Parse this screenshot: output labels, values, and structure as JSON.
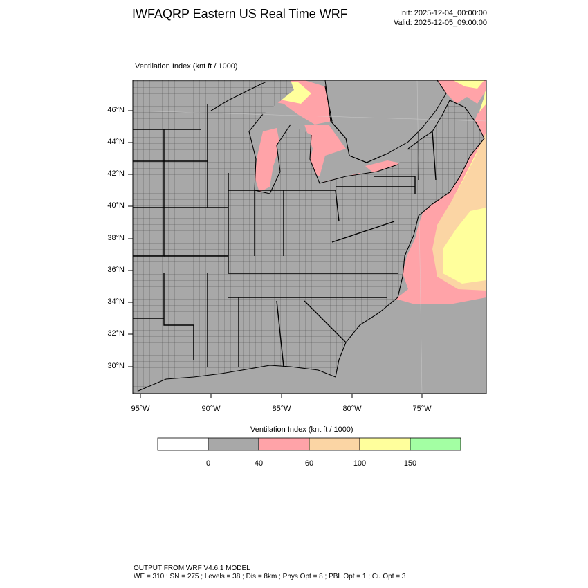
{
  "header": {
    "title": "IWFAQRP Eastern US Real Time WRF",
    "init": "Init: 2025-12-04_00:00:00",
    "valid": "Valid: 2025-12-05_09:00:00"
  },
  "plot": {
    "label": "Ventilation Index   (knt ft / 1000)",
    "lat_labels": [
      "46°N",
      "44°N",
      "42°N",
      "40°N",
      "38°N",
      "36°N",
      "34°N",
      "32°N",
      "30°N"
    ],
    "lon_labels": [
      "95°W",
      "90°W",
      "85°W",
      "80°W",
      "75°W"
    ],
    "colors": {
      "land": "#a8a8a8",
      "low_fill": "#ffa3a8",
      "mid_fill": "#fbd5a4",
      "high_fill": "#ffff9c",
      "top_fill": "#a3ffa3",
      "boundary": "#000000"
    }
  },
  "colorbar": {
    "title": "Ventilation Index  (knt ft / 1000)",
    "bins": [
      {
        "color": "#ffffff"
      },
      {
        "color": "#a8a8a8"
      },
      {
        "color": "#ffa3a8"
      },
      {
        "color": "#fbd5a4"
      },
      {
        "color": "#ffff9c"
      },
      {
        "color": "#a3ffa3"
      }
    ],
    "ticks": [
      "0",
      "40",
      "60",
      "100",
      "150"
    ]
  },
  "footer": {
    "line1": "OUTPUT FROM WRF V4.6.1 MODEL",
    "line2": "WE = 310 ; SN = 275 ; Levels = 38 ; Dis = 8km ; Phys Opt = 8 ; PBL Opt = 1 ; Cu Opt = 3"
  }
}
